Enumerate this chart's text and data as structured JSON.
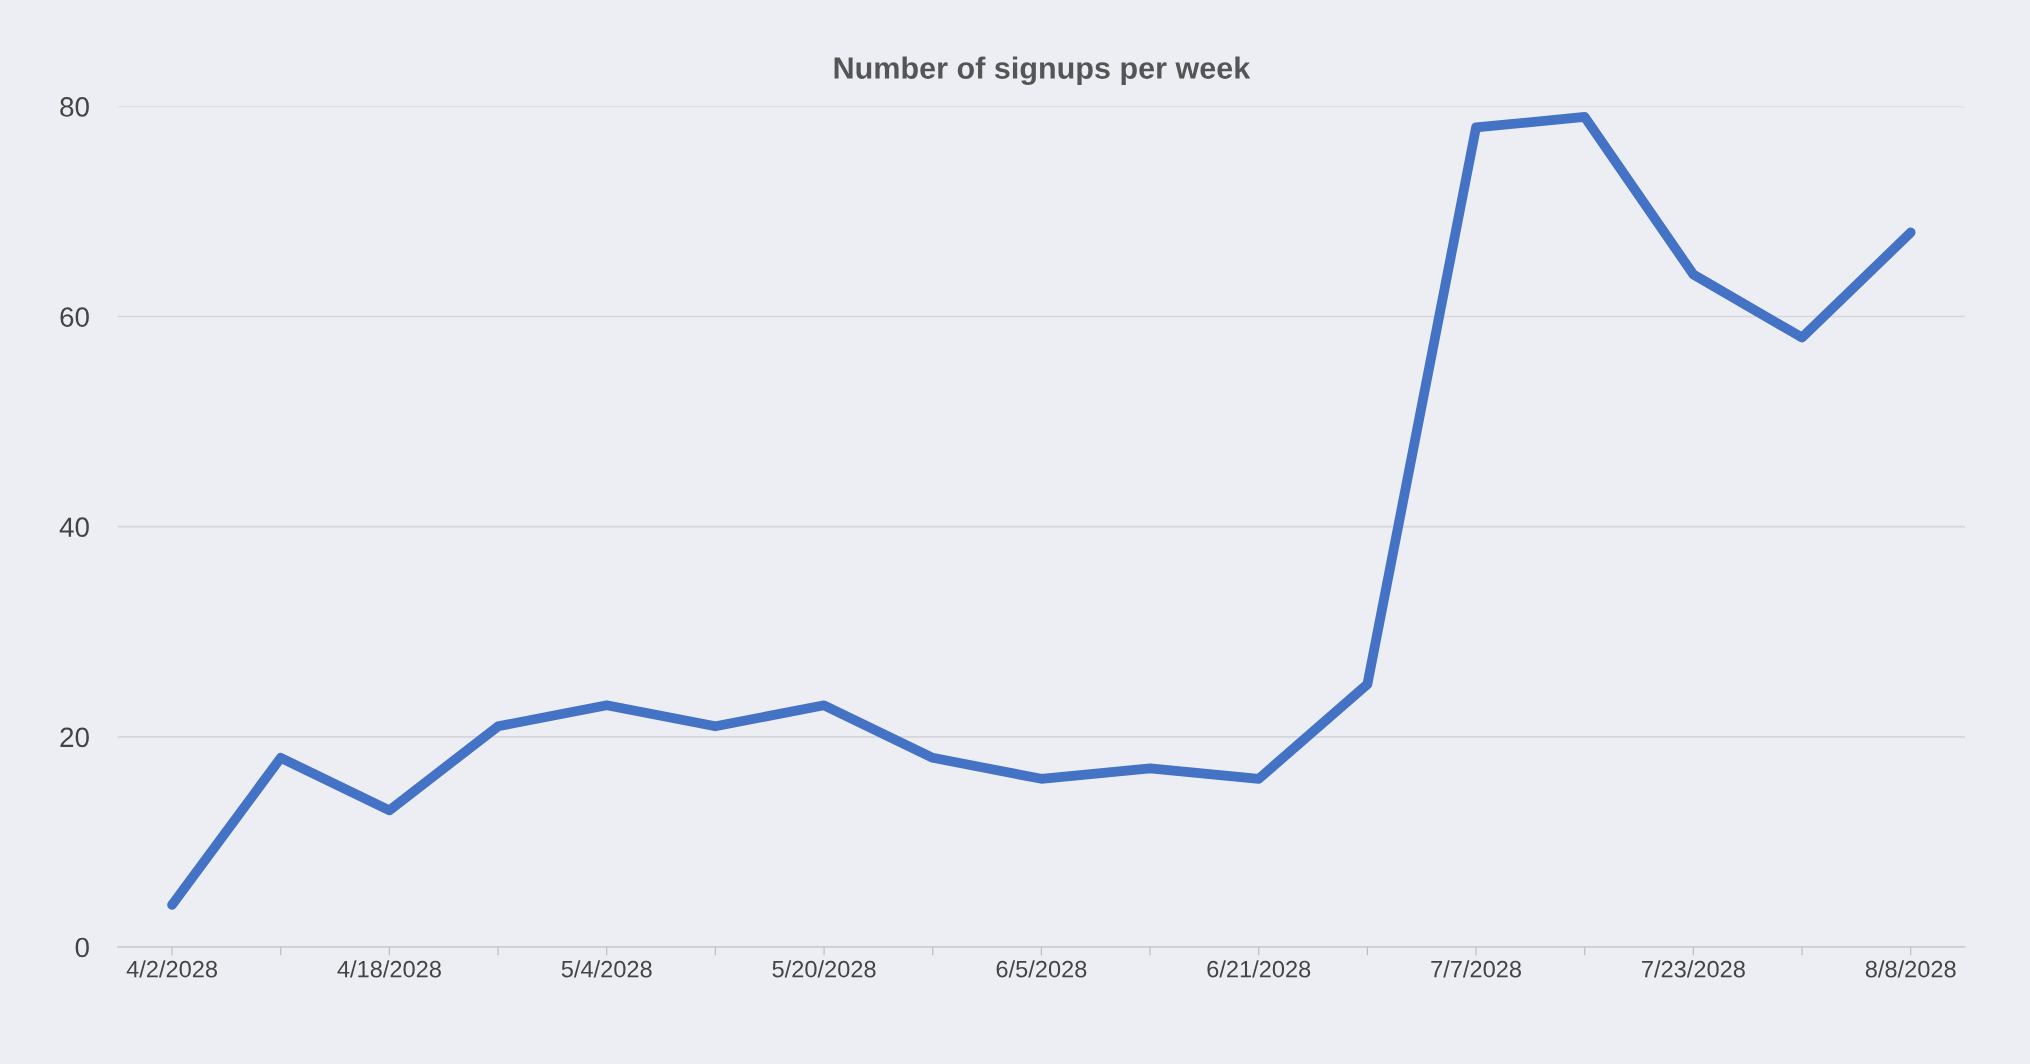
{
  "chart_data": {
    "type": "line",
    "title": "Number of signups per week",
    "categories": [
      "4/2/2028",
      null,
      "4/18/2028",
      null,
      "5/4/2028",
      null,
      "5/20/2028",
      null,
      "6/5/2028",
      null,
      "6/21/2028",
      null,
      "7/7/2028",
      null,
      "7/23/2028",
      null,
      "8/8/2028"
    ],
    "series": [
      {
        "color": "#4472c4",
        "values": [
          4,
          18,
          13,
          21,
          23,
          21,
          23,
          18,
          16,
          17,
          16,
          25,
          78,
          79,
          64,
          58,
          68
        ]
      }
    ],
    "ylim": [
      0,
      80
    ],
    "yticks": [
      0,
      20,
      40,
      60,
      80
    ],
    "grid": "y",
    "marker": "none",
    "line_style": "solid"
  }
}
